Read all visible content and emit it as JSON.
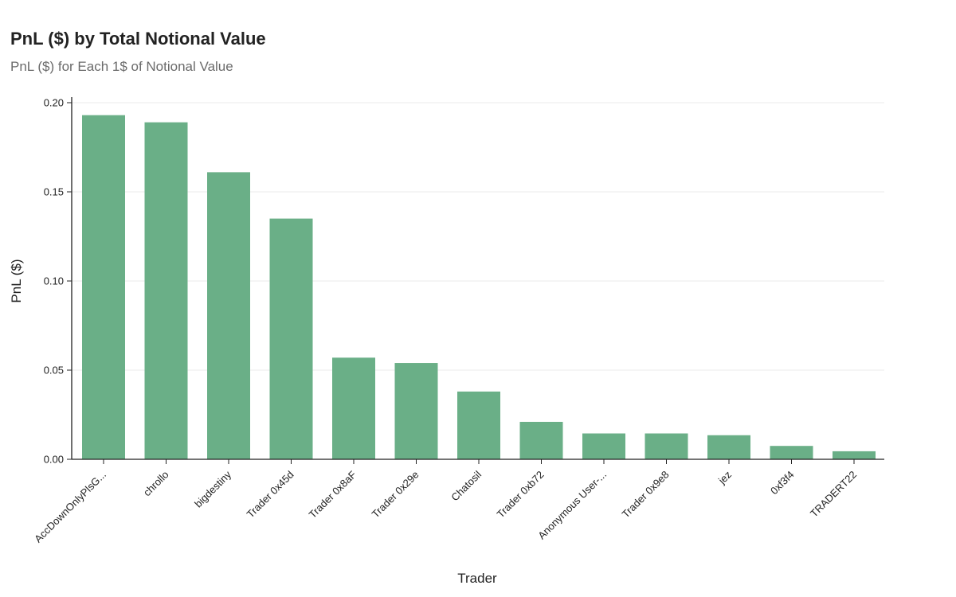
{
  "header": {
    "title": "PnL ($) by Total Notional Value",
    "subtitle": "PnL ($) for Each 1$ of Notional Value"
  },
  "colors": {
    "bar": "#6aaf87",
    "grid": "#ebebeb",
    "axis": "#222222"
  },
  "chart_data": {
    "type": "bar",
    "title": "PnL ($) by Total Notional Value",
    "subtitle": "PnL ($) for Each 1$ of Notional Value",
    "xlabel": "Trader",
    "ylabel": "PnL ($)",
    "ylim": [
      0,
      0.2
    ],
    "yticks": [
      0,
      0.05,
      0.1,
      0.15,
      0.2
    ],
    "ytick_labels": [
      "0.00",
      "0.05",
      "0.10",
      "0.15",
      "0.20"
    ],
    "grid": true,
    "categories": [
      "AccDownOnlyPlsG...",
      "chrollo",
      "bigdestiny",
      "Trader 0x45d",
      "Trader 0x8aF",
      "Trader 0x29e",
      "Chatosil",
      "Trader 0xb72",
      "Anonymous User-...",
      "Trader 0x9e8",
      "jez",
      "0xf3f4",
      "TRADERT22"
    ],
    "values": [
      0.193,
      0.189,
      0.161,
      0.135,
      0.057,
      0.054,
      0.038,
      0.021,
      0.0145,
      0.0145,
      0.0135,
      0.0075,
      0.0045
    ]
  }
}
